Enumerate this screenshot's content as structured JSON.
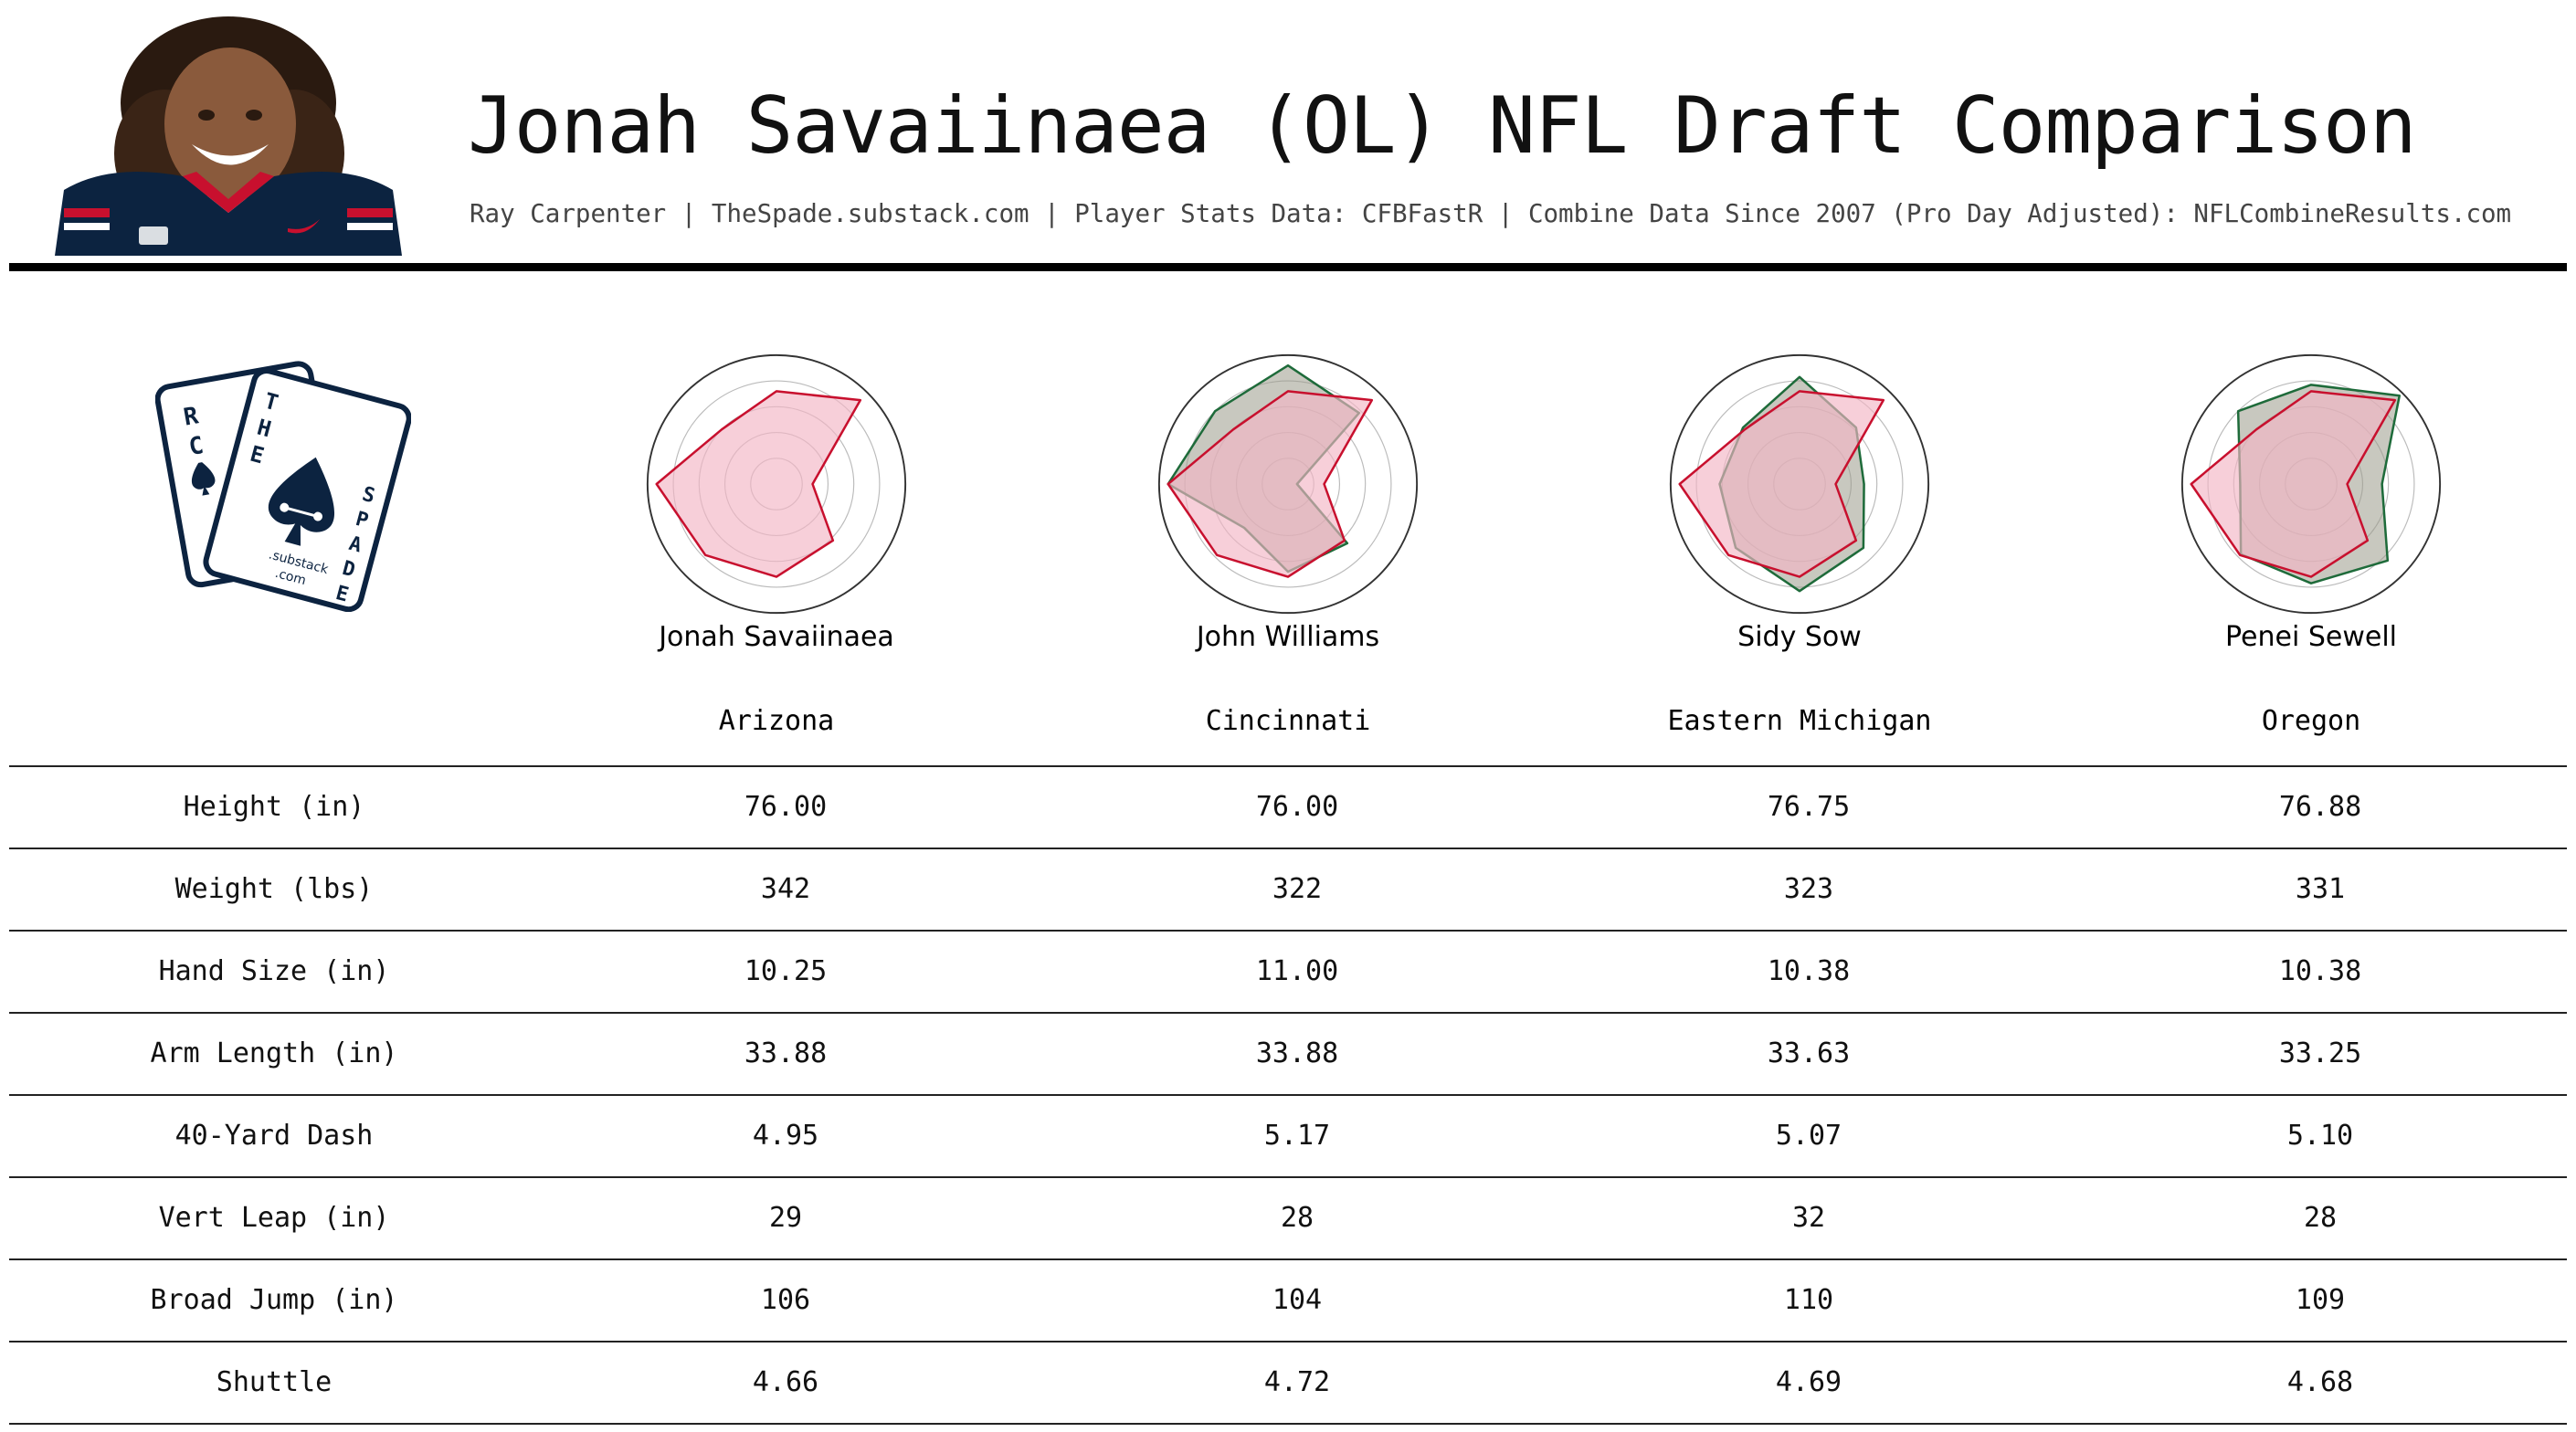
{
  "header": {
    "title": "Jonah Savaiinaea (OL) NFL Draft Comparison",
    "subtitle": "Ray Carpenter | TheSpade.substack.com | Player Stats Data: CFBFastR | Combine Data Since 2007 (Pro Day Adjusted): NFLCombineResults.com"
  },
  "logo": {
    "card_letters_left": [
      "R",
      "C"
    ],
    "card_letters_top": [
      "T",
      "H",
      "E"
    ],
    "card_letters_right": [
      "S",
      "P",
      "A",
      "D",
      "E"
    ],
    "card_text_1": ".substack",
    "card_text_2": ".com"
  },
  "colors": {
    "primary": "#c8102e",
    "primary_fill": "#f2b6c4",
    "comparison": "#1e6b3a",
    "comparison_fill": "#9a9a8a",
    "navy": "#0c2340",
    "grid": "#bbbbbb"
  },
  "players": [
    {
      "name": "Jonah Savaiinaea",
      "school": "Arizona"
    },
    {
      "name": "John Williams",
      "school": "Cincinnati"
    },
    {
      "name": "Sidy Sow",
      "school": "Eastern Michigan"
    },
    {
      "name": "Penei Sewell",
      "school": "Oregon"
    }
  ],
  "table": {
    "rows": [
      {
        "label": "Height (in)",
        "values": [
          "76.00",
          "76.00",
          "76.75",
          "76.88"
        ]
      },
      {
        "label": "Weight (lbs)",
        "values": [
          "342",
          "322",
          "323",
          "331"
        ]
      },
      {
        "label": "Hand Size (in)",
        "values": [
          "10.25",
          "11.00",
          "10.38",
          "10.38"
        ]
      },
      {
        "label": "Arm Length (in)",
        "values": [
          "33.88",
          "33.88",
          "33.63",
          "33.25"
        ]
      },
      {
        "label": "40-Yard Dash",
        "values": [
          "4.95",
          "5.17",
          "5.07",
          "5.10"
        ]
      },
      {
        "label": "Vert Leap (in)",
        "values": [
          "29",
          "28",
          "32",
          "28"
        ]
      },
      {
        "label": "Broad Jump (in)",
        "values": [
          "106",
          "104",
          "110",
          "109"
        ]
      },
      {
        "label": "Shuttle",
        "values": [
          "4.66",
          "4.72",
          "4.69",
          "4.68"
        ]
      }
    ]
  },
  "chart_data": [
    {
      "type": "radar",
      "player": "Jonah Savaiinaea",
      "rlim": [
        0,
        1
      ],
      "grid": true,
      "series": [
        {
          "values": [
            0.72,
            0.92,
            0.28,
            0.62,
            0.72,
            0.78,
            0.93,
            0.6
          ]
        }
      ]
    },
    {
      "type": "radar",
      "player": "John Williams",
      "rlim": [
        0,
        1
      ],
      "grid": true,
      "series": [
        {
          "values": [
            0.92,
            0.78,
            0.07,
            0.65,
            0.68,
            0.48,
            0.93,
            0.8
          ]
        },
        {
          "values": [
            0.72,
            0.92,
            0.28,
            0.62,
            0.72,
            0.78,
            0.93,
            0.6
          ]
        }
      ]
    },
    {
      "type": "radar",
      "player": "Sidy Sow",
      "rlim": [
        0,
        1
      ],
      "grid": true,
      "series": [
        {
          "values": [
            0.83,
            0.62,
            0.5,
            0.7,
            0.83,
            0.7,
            0.62,
            0.62
          ]
        },
        {
          "values": [
            0.72,
            0.92,
            0.28,
            0.62,
            0.72,
            0.78,
            0.93,
            0.6
          ]
        }
      ]
    },
    {
      "type": "radar",
      "player": "Penei Sewell",
      "rlim": [
        0,
        1
      ],
      "grid": true,
      "series": [
        {
          "values": [
            0.77,
            0.97,
            0.55,
            0.84,
            0.77,
            0.77,
            0.55,
            0.8
          ]
        },
        {
          "values": [
            0.72,
            0.92,
            0.28,
            0.62,
            0.72,
            0.78,
            0.93,
            0.6
          ]
        }
      ]
    }
  ]
}
